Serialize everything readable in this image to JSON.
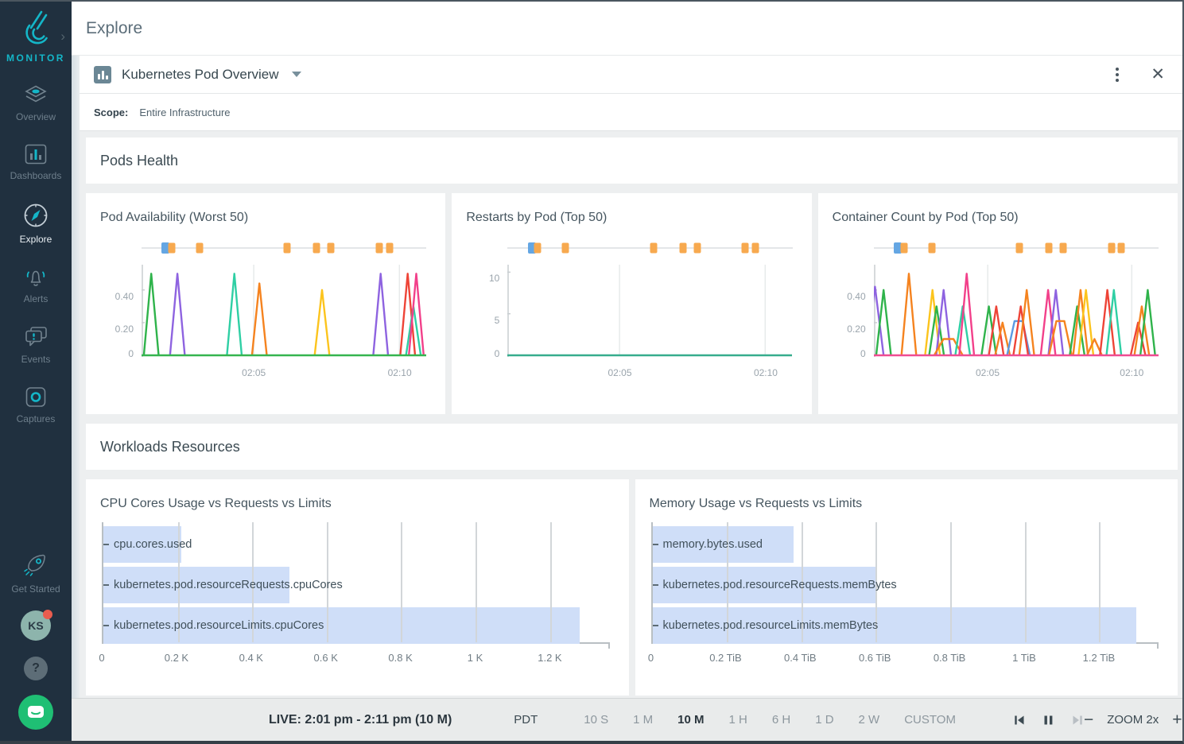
{
  "sidebar": {
    "logo_text": "MONITOR",
    "expand_icon": "›",
    "items": [
      {
        "label": "Overview",
        "icon": "layers-icon",
        "active": false
      },
      {
        "label": "Dashboards",
        "icon": "dashboards-icon",
        "active": false
      },
      {
        "label": "Explore",
        "icon": "compass-icon",
        "active": true
      },
      {
        "label": "Alerts",
        "icon": "bell-icon",
        "active": false
      },
      {
        "label": "Events",
        "icon": "events-icon",
        "active": false
      },
      {
        "label": "Captures",
        "icon": "captures-icon",
        "active": false
      }
    ],
    "get_started_label": "Get Started",
    "avatar_initials": "KS",
    "help_label": "?"
  },
  "header": {
    "title": "Explore"
  },
  "panel": {
    "title": "Kubernetes Pod Overview",
    "scope_label": "Scope:",
    "scope_value": "Entire Infrastructure"
  },
  "sections": {
    "pods_health": "Pods Health",
    "workloads": "Workloads Resources"
  },
  "timebar": {
    "live": "LIVE: 2:01 pm - 2:11 pm (10 M)",
    "tz": "PDT",
    "ranges": [
      {
        "label": "10 S",
        "active": false
      },
      {
        "label": "1 M",
        "active": false
      },
      {
        "label": "10 M",
        "active": true
      },
      {
        "label": "1 H",
        "active": false
      },
      {
        "label": "6 H",
        "active": false
      },
      {
        "label": "1 D",
        "active": false
      },
      {
        "label": "2 W",
        "active": false
      },
      {
        "label": "CUSTOM",
        "active": false
      }
    ],
    "playback": [
      {
        "name": "skip-back-icon",
        "enabled": true
      },
      {
        "name": "pause-icon",
        "enabled": true
      },
      {
        "name": "skip-forward-icon",
        "enabled": false
      }
    ],
    "zoom": {
      "minus": "−",
      "label": "ZOOM 2x",
      "plus": "+"
    }
  },
  "colors": {
    "accent_teal": "#14b6c8",
    "sidebar_bg": "#20303f",
    "event_blue": "#64a6e3",
    "event_orange": "#f7a94f",
    "bar_fill": "#cfdef8",
    "series": {
      "green": "#2fb34b",
      "purple": "#8e63e0",
      "teal": "#2fcfa4",
      "orange": "#f5831f",
      "yellow": "#fcc41d",
      "red": "#ee4437",
      "pink": "#f2408a",
      "blue": "#5b99e3"
    }
  },
  "chart_data": [
    {
      "type": "line",
      "title": "Pod Availability (Worst 50)",
      "ylim": [
        0,
        0.55
      ],
      "yticks": [
        {
          "v": 0.4,
          "label": "0.40"
        },
        {
          "v": 0.2,
          "label": "0.20"
        },
        {
          "v": 0,
          "label": "0"
        }
      ],
      "xticks": [
        {
          "f": 0.394,
          "label": "02:05"
        },
        {
          "f": 0.906,
          "label": "02:10"
        }
      ],
      "baseline_color": "#35b44f",
      "events": [
        {
          "f": 0.085,
          "c": "blue"
        },
        {
          "f": 0.106,
          "c": "orange"
        },
        {
          "f": 0.204,
          "c": "orange"
        },
        {
          "f": 0.512,
          "c": "orange"
        },
        {
          "f": 0.615,
          "c": "orange"
        },
        {
          "f": 0.665,
          "c": "orange"
        },
        {
          "f": 0.834,
          "c": "orange"
        },
        {
          "f": 0.87,
          "c": "orange"
        }
      ],
      "spikes": [
        {
          "x": 0.034,
          "h": 0.5,
          "c": "green"
        },
        {
          "x": 0.126,
          "h": 0.5,
          "c": "purple"
        },
        {
          "x": 0.326,
          "h": 0.5,
          "c": "teal"
        },
        {
          "x": 0.414,
          "h": 0.44,
          "c": "orange"
        },
        {
          "x": 0.634,
          "h": 0.4,
          "c": "yellow"
        },
        {
          "x": 0.84,
          "h": 0.5,
          "c": "purple"
        },
        {
          "x": 0.935,
          "h": 0.5,
          "c": "red"
        },
        {
          "x": 0.955,
          "h": 0.3,
          "c": "teal"
        },
        {
          "x": 0.965,
          "h": 0.5,
          "c": "pink"
        }
      ]
    },
    {
      "type": "line",
      "title": "Restarts by Pod (Top 50)",
      "ylim": [
        0,
        10.8
      ],
      "yticks": [
        {
          "v": 10,
          "label": "10"
        },
        {
          "v": 5,
          "label": "5"
        },
        {
          "v": 0,
          "label": "0"
        }
      ],
      "xticks": [
        {
          "f": 0.394,
          "label": "02:05"
        },
        {
          "f": 0.906,
          "label": "02:10"
        }
      ],
      "baseline_color": "#36ad8d",
      "events": [
        {
          "f": 0.085,
          "c": "blue"
        },
        {
          "f": 0.106,
          "c": "orange"
        },
        {
          "f": 0.204,
          "c": "orange"
        },
        {
          "f": 0.512,
          "c": "orange"
        },
        {
          "f": 0.615,
          "c": "orange"
        },
        {
          "f": 0.665,
          "c": "orange"
        },
        {
          "f": 0.834,
          "c": "orange"
        },
        {
          "f": 0.87,
          "c": "orange"
        }
      ],
      "spikes": []
    },
    {
      "type": "line",
      "title": "Container Count by Pod (Top 50)",
      "ylim": [
        0,
        0.55
      ],
      "yticks": [
        {
          "v": 0.4,
          "label": "0.40"
        },
        {
          "v": 0.2,
          "label": "0.20"
        },
        {
          "v": 0,
          "label": "0"
        }
      ],
      "xticks": [
        {
          "f": 0.4,
          "label": "02:05"
        },
        {
          "f": 0.906,
          "label": "02:10"
        }
      ],
      "baseline_color": "#ef4d92",
      "events": [
        {
          "f": 0.085,
          "c": "blue"
        },
        {
          "f": 0.106,
          "c": "orange"
        },
        {
          "f": 0.204,
          "c": "orange"
        },
        {
          "f": 0.512,
          "c": "orange"
        },
        {
          "f": 0.615,
          "c": "orange"
        },
        {
          "f": 0.665,
          "c": "orange"
        },
        {
          "f": 0.834,
          "c": "orange"
        },
        {
          "f": 0.87,
          "c": "orange"
        }
      ],
      "spikes": [
        {
          "x": 0.004,
          "h": 0.42,
          "c": "purple",
          "w": 0.03
        },
        {
          "x": 0.034,
          "h": 0.4,
          "c": "green"
        },
        {
          "x": 0.123,
          "h": 0.5,
          "c": "orange"
        },
        {
          "x": 0.206,
          "h": 0.4,
          "c": "yellow"
        },
        {
          "x": 0.22,
          "h": 0.3,
          "c": "green"
        },
        {
          "x": 0.245,
          "h": 0.4,
          "c": "purple"
        },
        {
          "x": 0.262,
          "h": 0.1,
          "c": "orange",
          "w": 0.05,
          "t": "trap"
        },
        {
          "x": 0.312,
          "h": 0.3,
          "c": "teal"
        },
        {
          "x": 0.326,
          "h": 0.5,
          "c": "pink"
        },
        {
          "x": 0.404,
          "h": 0.3,
          "c": "green"
        },
        {
          "x": 0.43,
          "h": 0.3,
          "c": "red"
        },
        {
          "x": 0.452,
          "h": 0.2,
          "c": "orange"
        },
        {
          "x": 0.508,
          "h": 0.21,
          "c": "blue",
          "w": 0.04,
          "t": "trap"
        },
        {
          "x": 0.516,
          "h": 0.3,
          "c": "red"
        },
        {
          "x": 0.537,
          "h": 0.4,
          "c": "orange"
        },
        {
          "x": 0.612,
          "h": 0.4,
          "c": "pink"
        },
        {
          "x": 0.639,
          "h": 0.4,
          "c": "purple"
        },
        {
          "x": 0.655,
          "h": 0.21,
          "c": "orange",
          "w": 0.04,
          "t": "trap"
        },
        {
          "x": 0.714,
          "h": 0.3,
          "c": "green"
        },
        {
          "x": 0.726,
          "h": 0.4,
          "c": "orange"
        },
        {
          "x": 0.745,
          "h": 0.4,
          "c": "yellow"
        },
        {
          "x": 0.775,
          "h": 0.1,
          "c": "orange"
        },
        {
          "x": 0.82,
          "h": 0.4,
          "c": "red"
        },
        {
          "x": 0.843,
          "h": 0.4,
          "c": "teal"
        },
        {
          "x": 0.928,
          "h": 0.2,
          "c": "red"
        },
        {
          "x": 0.941,
          "h": 0.3,
          "c": "orange"
        },
        {
          "x": 0.962,
          "h": 0.4,
          "c": "green"
        }
      ]
    },
    {
      "type": "bar",
      "title": "CPU Cores Usage vs Requests vs Limits",
      "unit": "K",
      "max": 1.36,
      "rows": [
        {
          "label": "cpu.cores.used",
          "value": 0.21
        },
        {
          "label": "kubernetes.pod.resourceRequests.cpuCores",
          "value": 0.5
        },
        {
          "label": "kubernetes.pod.resourceLimits.cpuCores",
          "value": 1.28
        }
      ],
      "ticks": [
        {
          "v": 0,
          "label": "0"
        },
        {
          "v": 0.2,
          "label": "0.2 K"
        },
        {
          "v": 0.4,
          "label": "0.4 K"
        },
        {
          "v": 0.6,
          "label": "0.6 K"
        },
        {
          "v": 0.8,
          "label": "0.8 K"
        },
        {
          "v": 1.0,
          "label": "1 K"
        },
        {
          "v": 1.2,
          "label": "1.2 K"
        }
      ]
    },
    {
      "type": "bar",
      "title": "Memory Usage vs Requests vs Limits",
      "unit": "TiB",
      "max": 1.36,
      "rows": [
        {
          "label": "memory.bytes.used",
          "value": 0.38
        },
        {
          "label": "kubernetes.pod.resourceRequests.memBytes",
          "value": 0.6
        },
        {
          "label": "kubernetes.pod.resourceLimits.memBytes",
          "value": 1.3
        }
      ],
      "ticks": [
        {
          "v": 0,
          "label": "0"
        },
        {
          "v": 0.2,
          "label": "0.2 TiB"
        },
        {
          "v": 0.4,
          "label": "0.4 TiB"
        },
        {
          "v": 0.6,
          "label": "0.6 TiB"
        },
        {
          "v": 0.8,
          "label": "0.8 TiB"
        },
        {
          "v": 1.0,
          "label": "1 TiB"
        },
        {
          "v": 1.2,
          "label": "1.2 TiB"
        }
      ]
    }
  ]
}
